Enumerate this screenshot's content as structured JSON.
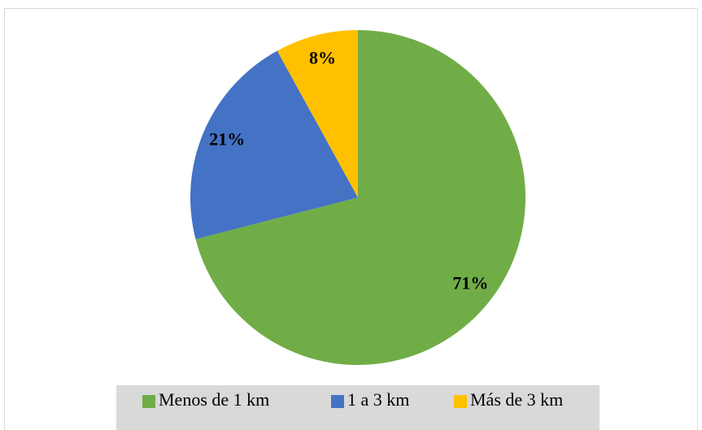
{
  "chart_data": {
    "type": "pie",
    "categories": [
      "Menos de 1 km",
      "1 a 3 km",
      "Más de 3 km"
    ],
    "values": [
      71,
      21,
      8
    ],
    "value_labels": [
      "71%",
      "21%",
      "8%"
    ],
    "colors": [
      "#70ad47",
      "#4472c4",
      "#ffc000"
    ],
    "legend": "bottom"
  }
}
